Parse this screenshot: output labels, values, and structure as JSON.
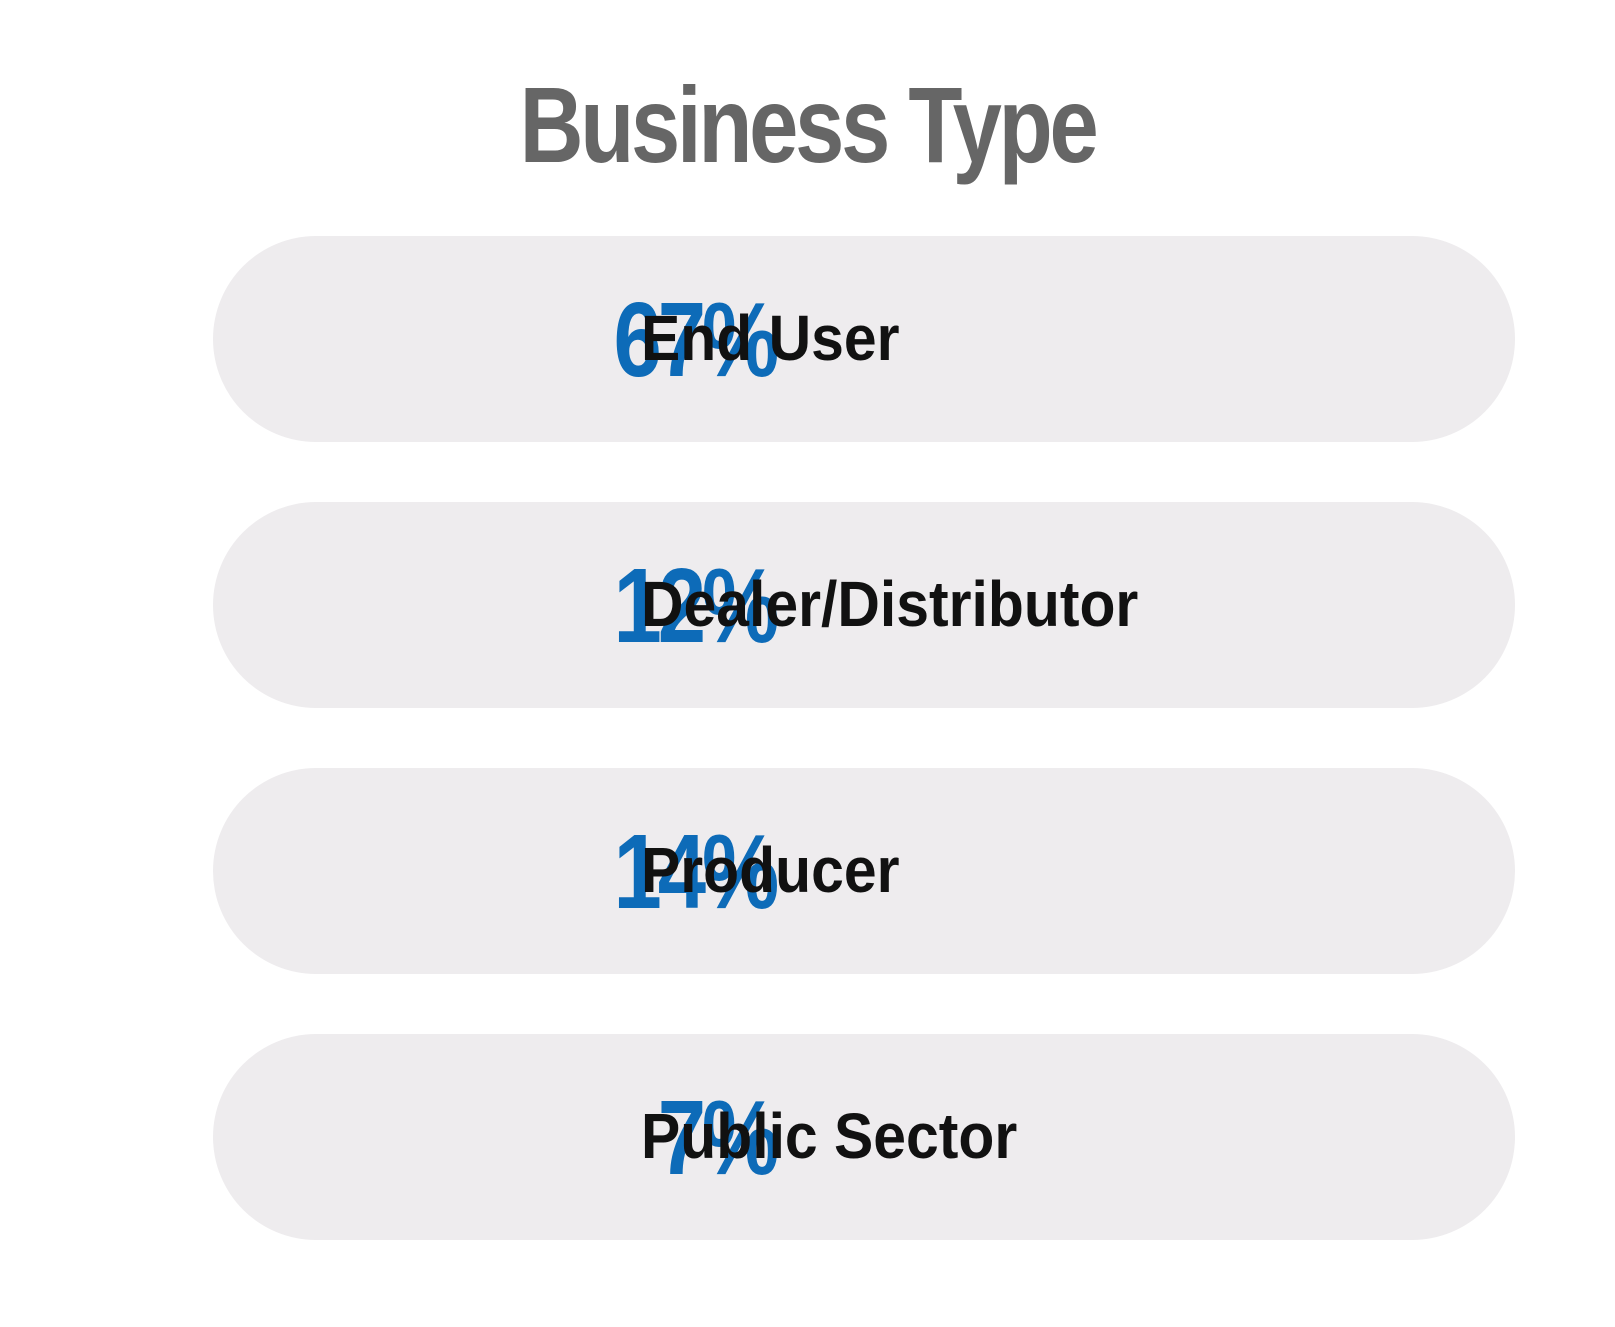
{
  "chart_data": {
    "type": "table",
    "title": "Business Type",
    "categories": [
      "End User",
      "Dealer/Distributor",
      "Producer",
      "Public Sector"
    ],
    "values": [
      67,
      12,
      14,
      7
    ],
    "unit": "%",
    "rows": [
      {
        "value_label": "67%",
        "label": "End User"
      },
      {
        "value_label": "12%",
        "label": "Dealer/Distributor"
      },
      {
        "value_label": "14%",
        "label": "Producer"
      },
      {
        "value_label": "7%",
        "label": "Public Sector"
      }
    ]
  },
  "colors": {
    "title": "#666666",
    "value": "#0d6bb8",
    "label": "#111111",
    "row_background": "#eeecee",
    "page_background": "#ffffff"
  }
}
